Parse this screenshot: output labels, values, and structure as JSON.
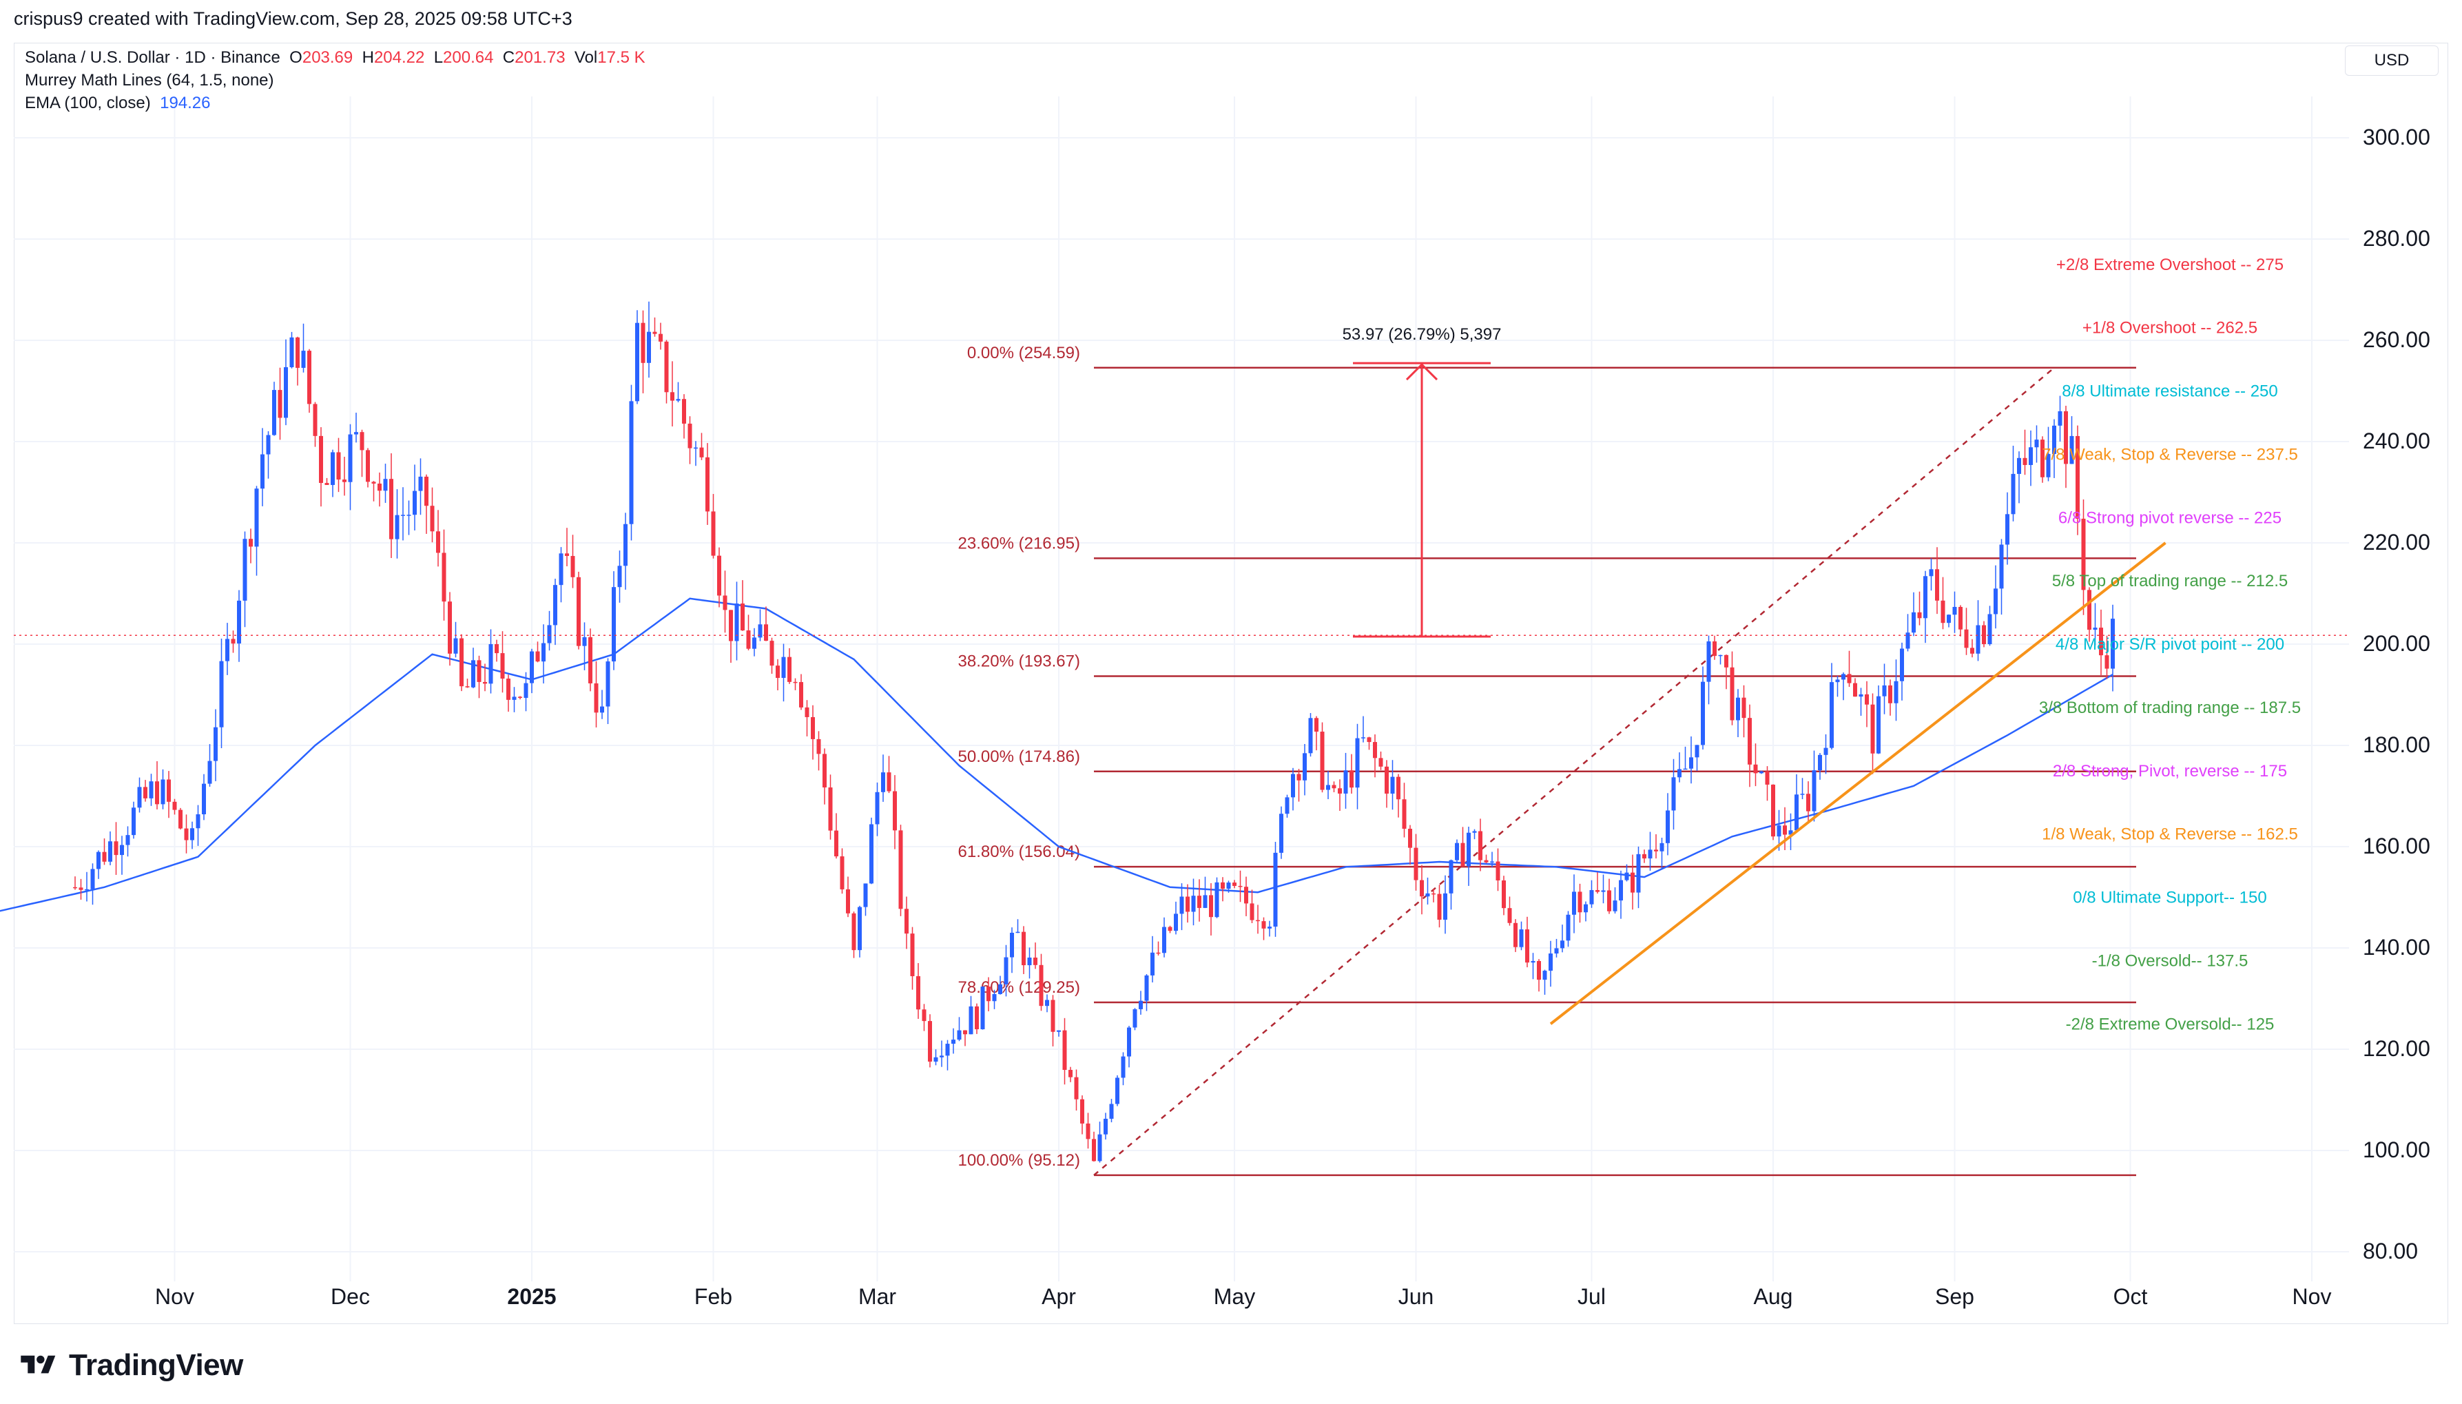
{
  "header": {
    "credit": "crispus9 created with TradingView.com, Sep 28, 2025 09:58 UTC+3"
  },
  "legend": {
    "symbol": "Solana / U.S. Dollar · 1D · Binance",
    "o_label": "O",
    "o_value": "203.69",
    "h_label": "H",
    "h_value": "204.22",
    "l_label": "L",
    "l_value": "200.64",
    "c_label": "C",
    "c_value": "201.73",
    "vol_label": "Vol",
    "vol_value": "17.5 K",
    "murrey": "Murrey Math Lines (64, 1.5, none)",
    "ema_label": "EMA (100, close)",
    "ema_value": "194.26"
  },
  "currency": "USD",
  "brand": "TradingView",
  "colors": {
    "up": "#2962ff",
    "down": "#f23645",
    "ema": "#2962ff",
    "fib": "#b22833",
    "trend": "#f7931a",
    "grid": "#f0f3fa",
    "text": "#131722"
  },
  "chart_data": {
    "type": "candlestick",
    "title": "Solana / U.S. Dollar · 1D · Binance",
    "ylim": [
      70,
      312
    ],
    "y_ticks": [
      "300.00",
      "280.00",
      "260.00",
      "240.00",
      "220.00",
      "200.00",
      "180.00",
      "160.00",
      "140.00",
      "120.00",
      "100.00",
      "80.00"
    ],
    "y_tick_values": [
      300,
      280,
      260,
      240,
      220,
      200,
      180,
      160,
      140,
      120,
      100,
      80
    ],
    "x_ticks": [
      {
        "label": "Nov",
        "date": "2024-11-01",
        "bold": false
      },
      {
        "label": "Dec",
        "date": "2024-12-01",
        "bold": false
      },
      {
        "label": "2025",
        "date": "2025-01-01",
        "bold": true
      },
      {
        "label": "Feb",
        "date": "2025-02-01",
        "bold": false
      },
      {
        "label": "Mar",
        "date": "2025-03-01",
        "bold": false
      },
      {
        "label": "Apr",
        "date": "2025-04-01",
        "bold": false
      },
      {
        "label": "May",
        "date": "2025-05-01",
        "bold": false
      },
      {
        "label": "Jun",
        "date": "2025-06-01",
        "bold": false
      },
      {
        "label": "Jul",
        "date": "2025-07-01",
        "bold": false
      },
      {
        "label": "Aug",
        "date": "2025-08-01",
        "bold": false
      },
      {
        "label": "Sep",
        "date": "2025-09-01",
        "bold": false
      },
      {
        "label": "Oct",
        "date": "2025-10-01",
        "bold": false
      },
      {
        "label": "Nov",
        "date": "2025-11-01",
        "bold": false
      }
    ],
    "price_anchors": [
      [
        "2024-10-15",
        152
      ],
      [
        "2024-10-22",
        162
      ],
      [
        "2024-10-29",
        172
      ],
      [
        "2024-11-04",
        160
      ],
      [
        "2024-11-11",
        205
      ],
      [
        "2024-11-16",
        238
      ],
      [
        "2024-11-22",
        260
      ],
      [
        "2024-11-26",
        235
      ],
      [
        "2024-12-03",
        240
      ],
      [
        "2024-12-08",
        225
      ],
      [
        "2024-12-14",
        228
      ],
      [
        "2024-12-20",
        190
      ],
      [
        "2024-12-25",
        196
      ],
      [
        "2024-12-31",
        190
      ],
      [
        "2025-01-06",
        218
      ],
      [
        "2025-01-13",
        185
      ],
      [
        "2025-01-17",
        228
      ],
      [
        "2025-01-19",
        262
      ],
      [
        "2025-01-24",
        253
      ],
      [
        "2025-01-31",
        232
      ],
      [
        "2025-02-03",
        205
      ],
      [
        "2025-02-08",
        200
      ],
      [
        "2025-02-15",
        196
      ],
      [
        "2025-02-20",
        172
      ],
      [
        "2025-02-25",
        138
      ],
      [
        "2025-03-02",
        179
      ],
      [
        "2025-03-06",
        140
      ],
      [
        "2025-03-10",
        120
      ],
      [
        "2025-03-18",
        127
      ],
      [
        "2025-03-25",
        142
      ],
      [
        "2025-03-31",
        125
      ],
      [
        "2025-04-07",
        97
      ],
      [
        "2025-04-14",
        130
      ],
      [
        "2025-04-22",
        148
      ],
      [
        "2025-05-01",
        150
      ],
      [
        "2025-05-07",
        147
      ],
      [
        "2025-05-10",
        173
      ],
      [
        "2025-05-14",
        182
      ],
      [
        "2025-05-18",
        168
      ],
      [
        "2025-05-23",
        180
      ],
      [
        "2025-05-28",
        172
      ],
      [
        "2025-06-01",
        155
      ],
      [
        "2025-06-05",
        148
      ],
      [
        "2025-06-10",
        163
      ],
      [
        "2025-06-15",
        153
      ],
      [
        "2025-06-22",
        131
      ],
      [
        "2025-06-28",
        151
      ],
      [
        "2025-07-02",
        150
      ],
      [
        "2025-07-07",
        152
      ],
      [
        "2025-07-12",
        162
      ],
      [
        "2025-07-18",
        178
      ],
      [
        "2025-07-22",
        202
      ],
      [
        "2025-07-26",
        185
      ],
      [
        "2025-08-02",
        162
      ],
      [
        "2025-08-07",
        170
      ],
      [
        "2025-08-13",
        198
      ],
      [
        "2025-08-18",
        182
      ],
      [
        "2025-08-22",
        195
      ],
      [
        "2025-08-28",
        212
      ],
      [
        "2025-09-02",
        202
      ],
      [
        "2025-09-06",
        204
      ],
      [
        "2025-09-12",
        235
      ],
      [
        "2025-09-16",
        238
      ],
      [
        "2025-09-18",
        248
      ],
      [
        "2025-09-21",
        236
      ],
      [
        "2025-09-24",
        203
      ],
      [
        "2025-09-26",
        198
      ],
      [
        "2025-09-28",
        202
      ]
    ],
    "ema_anchors": [
      [
        "2024-10-01",
        147
      ],
      [
        "2024-10-20",
        152
      ],
      [
        "2024-11-05",
        158
      ],
      [
        "2024-11-25",
        180
      ],
      [
        "2024-12-15",
        198
      ],
      [
        "2025-01-01",
        193
      ],
      [
        "2025-01-15",
        198
      ],
      [
        "2025-01-28",
        209
      ],
      [
        "2025-02-10",
        207
      ],
      [
        "2025-02-25",
        197
      ],
      [
        "2025-03-15",
        176
      ],
      [
        "2025-04-01",
        160
      ],
      [
        "2025-04-20",
        152
      ],
      [
        "2025-05-05",
        151
      ],
      [
        "2025-05-20",
        156
      ],
      [
        "2025-06-05",
        157
      ],
      [
        "2025-06-25",
        156
      ],
      [
        "2025-07-10",
        154
      ],
      [
        "2025-07-25",
        162
      ],
      [
        "2025-08-10",
        167
      ],
      [
        "2025-08-25",
        172
      ],
      [
        "2025-09-10",
        182
      ],
      [
        "2025-09-28",
        194
      ]
    ],
    "fib_x_range": [
      "2025-04-07",
      "2025-10-02"
    ],
    "fib_levels": [
      {
        "label": "0.00% (254.59)",
        "value": 254.59
      },
      {
        "label": "23.60% (216.95)",
        "value": 216.95
      },
      {
        "label": "38.20% (193.67)",
        "value": 193.67
      },
      {
        "label": "50.00% (174.86)",
        "value": 174.86
      },
      {
        "label": "61.80% (156.04)",
        "value": 156.04
      },
      {
        "label": "78.60% (129.25)",
        "value": 129.25
      },
      {
        "label": "100.00% (95.12)",
        "value": 95.12
      }
    ],
    "fib_diagonal": [
      [
        "2025-04-07",
        95.12
      ],
      [
        "2025-09-18",
        254.59
      ]
    ],
    "measure": {
      "label": "53.97 (26.79%) 5,397",
      "date": "2025-06-02",
      "from": 201.5,
      "to": 255.5
    },
    "trendline": [
      [
        "2025-06-24",
        125
      ],
      [
        "2025-10-07",
        220
      ]
    ],
    "last_price": 201.73,
    "murrey_lines": [
      {
        "label": "+2/8 Extreme Overshoot --  275",
        "value": 275,
        "color": "#f23645"
      },
      {
        "label": "+1/8 Overshoot --  262.5",
        "value": 262.5,
        "color": "#f23645"
      },
      {
        "label": "8/8 Ultimate resistance --  250",
        "value": 250,
        "color": "#00bcd4"
      },
      {
        "label": "7/8 Weak, Stop & Reverse --  237.5",
        "value": 237.5,
        "color": "#f7931a"
      },
      {
        "label": "6/8 Strong pivot reverse --  225",
        "value": 225,
        "color": "#e040fb"
      },
      {
        "label": "5/8 Top of trading range --  212.5",
        "value": 212.5,
        "color": "#43a047"
      },
      {
        "label": "4/8 Major S/R pivot point --  200",
        "value": 200,
        "color": "#00bcd4"
      },
      {
        "label": "3/8 Bottom of trading range --  187.5",
        "value": 187.5,
        "color": "#43a047"
      },
      {
        "label": "2/8 Strong, Pivot, reverse --  175",
        "value": 175,
        "color": "#e040fb"
      },
      {
        "label": "1/8 Weak, Stop & Reverse --  162.5",
        "value": 162.5,
        "color": "#f7931a"
      },
      {
        "label": "0/8 Ultimate Support--  150",
        "value": 150,
        "color": "#00bcd4"
      },
      {
        "label": "-1/8 Oversold--  137.5",
        "value": 137.5,
        "color": "#43a047"
      },
      {
        "label": "-2/8 Extreme Oversold--  125",
        "value": 125,
        "color": "#43a047"
      }
    ]
  }
}
